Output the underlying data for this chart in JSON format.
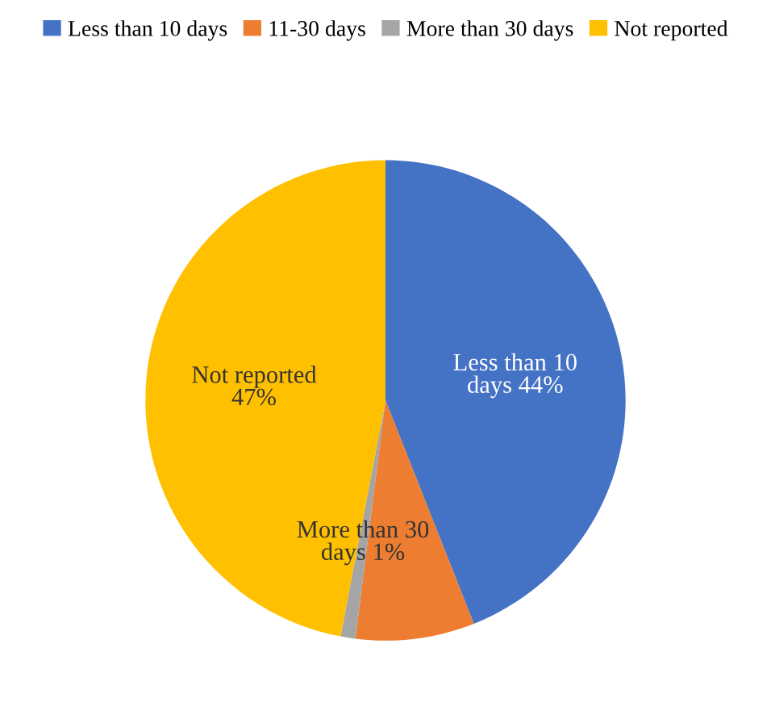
{
  "chart_data": {
    "type": "pie",
    "categories": [
      "Less than 10 days",
      "11-30 days",
      "More than 30 days",
      "Not reported"
    ],
    "values": [
      44,
      8,
      1,
      47
    ],
    "colors": [
      "#4472c4",
      "#ed7d31",
      "#a5a5a5",
      "#ffc000"
    ],
    "value_labels": [
      "Less than 10\ndays 44%",
      null,
      "More than 30\ndays 1%",
      "Not reported\n47%"
    ],
    "legend": "top"
  }
}
